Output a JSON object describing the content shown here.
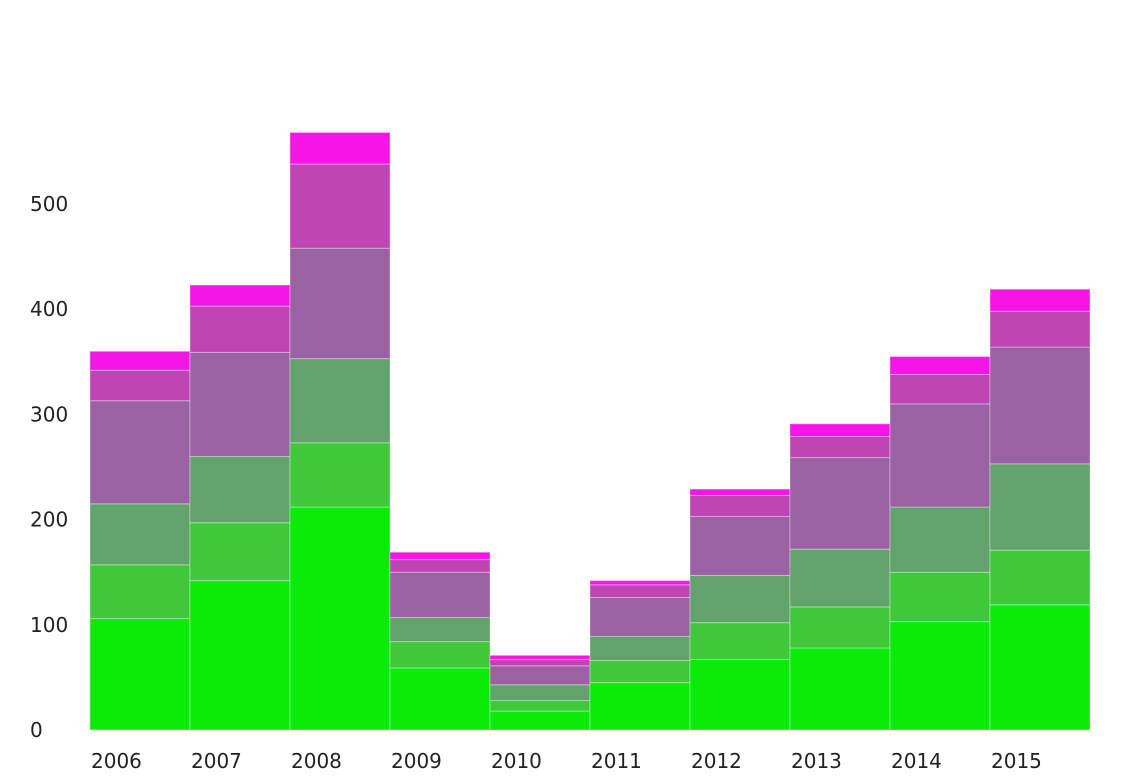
{
  "chart_data": {
    "type": "bar",
    "stacked": true,
    "categories": [
      "2006",
      "2007",
      "2008",
      "2009",
      "2010",
      "2011",
      "2012",
      "2013",
      "2014",
      "2015"
    ],
    "series": [
      {
        "color": "#0aeb0a",
        "values": [
          106,
          142,
          212,
          59,
          18,
          45,
          67,
          78,
          103,
          119
        ]
      },
      {
        "color": "#3ec83a",
        "values": [
          51,
          55,
          61,
          25,
          10,
          21,
          35,
          39,
          47,
          52
        ]
      },
      {
        "color": "#61a36a",
        "values": [
          58,
          63,
          80,
          23,
          15,
          23,
          45,
          55,
          62,
          82
        ]
      },
      {
        "color": "#9a61a3",
        "values": [
          98,
          99,
          105,
          43,
          18,
          37,
          56,
          87,
          98,
          111
        ]
      },
      {
        "color": "#bf44b4",
        "values": [
          29,
          44,
          80,
          12,
          6,
          12,
          20,
          20,
          28,
          34
        ]
      },
      {
        "color": "#f515e6",
        "values": [
          18,
          20,
          30,
          7,
          4,
          4,
          6,
          12,
          17,
          21
        ]
      }
    ],
    "yticks": [
      0,
      100,
      200,
      300,
      400,
      500
    ],
    "ylim": [
      0,
      570
    ],
    "grid": false,
    "legend": "none"
  }
}
